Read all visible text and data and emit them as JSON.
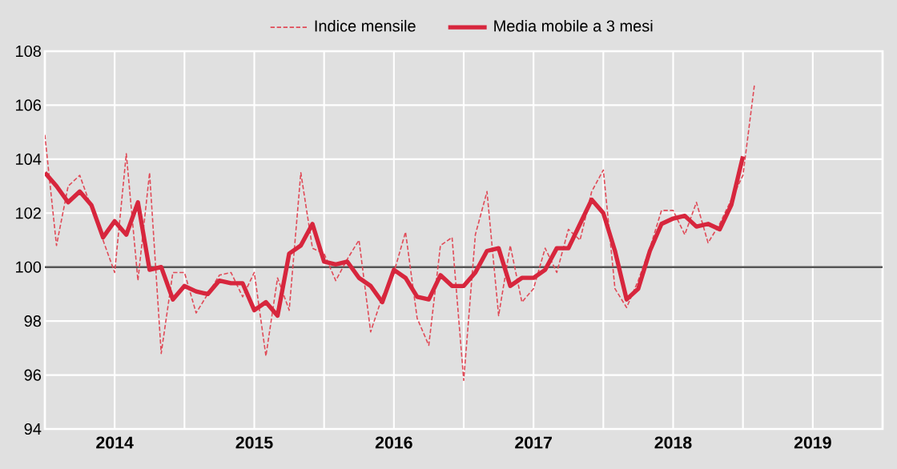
{
  "chart_data": {
    "type": "line",
    "x": [
      "2014-01",
      "2014-02",
      "2014-03",
      "2014-04",
      "2014-05",
      "2014-06",
      "2014-07",
      "2014-08",
      "2014-09",
      "2014-10",
      "2014-11",
      "2014-12",
      "2015-01",
      "2015-02",
      "2015-03",
      "2015-04",
      "2015-05",
      "2015-06",
      "2015-07",
      "2015-08",
      "2015-09",
      "2015-10",
      "2015-11",
      "2015-12",
      "2016-01",
      "2016-02",
      "2016-03",
      "2016-04",
      "2016-05",
      "2016-06",
      "2016-07",
      "2016-08",
      "2016-09",
      "2016-10",
      "2016-11",
      "2016-12",
      "2017-01",
      "2017-02",
      "2017-03",
      "2017-04",
      "2017-05",
      "2017-06",
      "2017-07",
      "2017-08",
      "2017-09",
      "2017-10",
      "2017-11",
      "2017-12",
      "2018-01",
      "2018-02",
      "2018-03",
      "2018-04",
      "2018-05",
      "2018-06",
      "2018-07",
      "2018-08",
      "2018-09",
      "2018-10",
      "2018-11",
      "2018-12",
      "2019-01",
      "2019-02"
    ],
    "series": [
      {
        "name": "Indice mensile",
        "color": "#e04a57",
        "line_style": "dashed",
        "values": [
          104.9,
          100.8,
          103.0,
          103.4,
          102.2,
          101.0,
          99.8,
          104.2,
          99.5,
          103.5,
          96.8,
          99.8,
          99.8,
          98.3,
          99.0,
          99.7,
          99.8,
          98.9,
          99.8,
          96.7,
          99.6,
          98.4,
          103.5,
          100.7,
          100.5,
          99.5,
          100.3,
          101.0,
          97.6,
          98.9,
          99.8,
          101.3,
          98.1,
          97.1,
          100.8,
          101.1,
          95.8,
          101.2,
          102.8,
          98.2,
          100.8,
          98.7,
          99.2,
          100.7,
          99.8,
          101.4,
          101.0,
          102.8,
          103.6,
          99.2,
          98.5,
          99.5,
          100.7,
          102.1,
          102.1,
          101.2,
          102.4,
          100.9,
          101.6,
          102.5,
          103.4,
          106.8
        ]
      },
      {
        "name": "Media mobile a 3 mesi",
        "color": "#d7263d",
        "line_style": "solid",
        "values": [
          103.5,
          103.0,
          102.4,
          102.8,
          102.3,
          101.1,
          101.7,
          101.2,
          102.4,
          99.9,
          100.0,
          98.8,
          99.3,
          99.1,
          99.0,
          99.5,
          99.4,
          99.4,
          98.4,
          98.7,
          98.2,
          100.5,
          100.8,
          101.6,
          100.2,
          100.1,
          100.2,
          99.6,
          99.3,
          98.7,
          99.9,
          99.6,
          98.9,
          98.8,
          99.7,
          99.3,
          99.3,
          99.8,
          100.6,
          100.7,
          99.3,
          99.6,
          99.6,
          99.9,
          100.7,
          100.7,
          101.6,
          102.5,
          102.0,
          100.6,
          98.8,
          99.2,
          100.6,
          101.6,
          101.8,
          101.9,
          101.5,
          101.6,
          101.4,
          102.3,
          104.1,
          null
        ]
      }
    ],
    "xlim": [
      "2014-01-01",
      "2020-01-01"
    ],
    "xticks": [
      {
        "value": "2014-01-01",
        "label": null
      },
      {
        "value": "2014-07-01",
        "label": "2014"
      },
      {
        "value": "2015-01-01",
        "label": null
      },
      {
        "value": "2015-07-01",
        "label": "2015"
      },
      {
        "value": "2016-01-01",
        "label": null
      },
      {
        "value": "2016-07-01",
        "label": "2016"
      },
      {
        "value": "2017-01-01",
        "label": null
      },
      {
        "value": "2017-07-01",
        "label": "2017"
      },
      {
        "value": "2018-01-01",
        "label": null
      },
      {
        "value": "2018-07-01",
        "label": "2018"
      },
      {
        "value": "2019-01-01",
        "label": null
      },
      {
        "value": "2019-07-01",
        "label": "2019"
      },
      {
        "value": "2020-01-01",
        "label": null
      }
    ],
    "ylim": [
      94,
      108
    ],
    "yticks": [
      94,
      96,
      98,
      100,
      102,
      104,
      106,
      108
    ],
    "ref_lines": [
      {
        "axis": "y",
        "value": 100,
        "color": "#555555"
      }
    ],
    "grid": true,
    "legend": "top",
    "marker": "none"
  }
}
